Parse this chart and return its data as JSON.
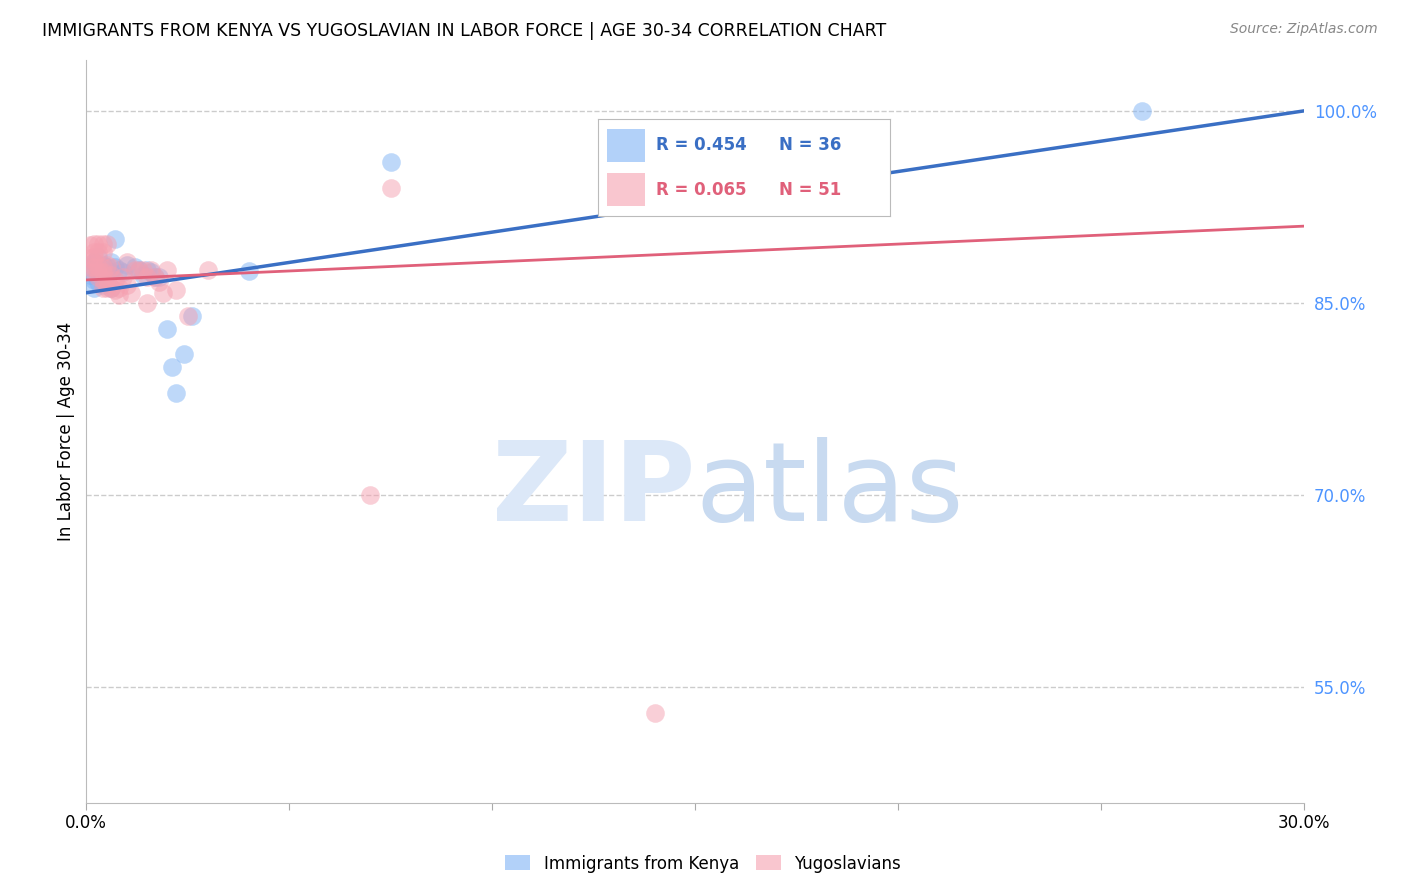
{
  "title": "IMMIGRANTS FROM KENYA VS YUGOSLAVIAN IN LABOR FORCE | AGE 30-34 CORRELATION CHART",
  "source": "Source: ZipAtlas.com",
  "ylabel": "In Labor Force | Age 30-34",
  "kenya_R": "0.454",
  "kenya_N": "36",
  "yugo_R": "0.065",
  "yugo_N": "51",
  "kenya_color": "#7fb3f5",
  "yugo_color": "#f5a0b0",
  "kenya_line_color": "#3a6fc4",
  "yugo_line_color": "#e0607a",
  "background_color": "#ffffff",
  "grid_color": "#cccccc",
  "right_axis_color": "#4d94ff",
  "xlim": [
    0.0,
    0.3
  ],
  "ylim": [
    0.46,
    1.04
  ],
  "kenya_scatter": [
    [
      0.001,
      0.878
    ],
    [
      0.001,
      0.872
    ],
    [
      0.002,
      0.882
    ],
    [
      0.002,
      0.868
    ],
    [
      0.002,
      0.862
    ],
    [
      0.003,
      0.886
    ],
    [
      0.003,
      0.874
    ],
    [
      0.003,
      0.866
    ],
    [
      0.004,
      0.88
    ],
    [
      0.004,
      0.874
    ],
    [
      0.004,
      0.864
    ],
    [
      0.005,
      0.878
    ],
    [
      0.005,
      0.868
    ],
    [
      0.006,
      0.882
    ],
    [
      0.006,
      0.874
    ],
    [
      0.006,
      0.862
    ],
    [
      0.007,
      0.9
    ],
    [
      0.007,
      0.878
    ],
    [
      0.008,
      0.876
    ],
    [
      0.009,
      0.874
    ],
    [
      0.01,
      0.88
    ],
    [
      0.012,
      0.878
    ],
    [
      0.013,
      0.876
    ],
    [
      0.014,
      0.872
    ],
    [
      0.015,
      0.876
    ],
    [
      0.016,
      0.874
    ],
    [
      0.017,
      0.87
    ],
    [
      0.018,
      0.87
    ],
    [
      0.02,
      0.83
    ],
    [
      0.021,
      0.8
    ],
    [
      0.022,
      0.78
    ],
    [
      0.024,
      0.81
    ],
    [
      0.026,
      0.84
    ],
    [
      0.04,
      0.875
    ],
    [
      0.075,
      0.96
    ],
    [
      0.26,
      1.0
    ]
  ],
  "yugo_scatter": [
    [
      0.001,
      0.895
    ],
    [
      0.001,
      0.885
    ],
    [
      0.001,
      0.878
    ],
    [
      0.002,
      0.896
    ],
    [
      0.002,
      0.89
    ],
    [
      0.002,
      0.886
    ],
    [
      0.002,
      0.882
    ],
    [
      0.002,
      0.878
    ],
    [
      0.002,
      0.874
    ],
    [
      0.003,
      0.896
    ],
    [
      0.003,
      0.89
    ],
    [
      0.003,
      0.878
    ],
    [
      0.003,
      0.874
    ],
    [
      0.003,
      0.87
    ],
    [
      0.004,
      0.896
    ],
    [
      0.004,
      0.89
    ],
    [
      0.004,
      0.878
    ],
    [
      0.004,
      0.874
    ],
    [
      0.004,
      0.868
    ],
    [
      0.004,
      0.862
    ],
    [
      0.005,
      0.896
    ],
    [
      0.005,
      0.88
    ],
    [
      0.005,
      0.868
    ],
    [
      0.005,
      0.862
    ],
    [
      0.006,
      0.878
    ],
    [
      0.006,
      0.872
    ],
    [
      0.006,
      0.862
    ],
    [
      0.007,
      0.868
    ],
    [
      0.007,
      0.86
    ],
    [
      0.008,
      0.862
    ],
    [
      0.008,
      0.856
    ],
    [
      0.009,
      0.87
    ],
    [
      0.01,
      0.882
    ],
    [
      0.01,
      0.864
    ],
    [
      0.011,
      0.858
    ],
    [
      0.012,
      0.876
    ],
    [
      0.013,
      0.876
    ],
    [
      0.014,
      0.876
    ],
    [
      0.015,
      0.87
    ],
    [
      0.015,
      0.85
    ],
    [
      0.016,
      0.876
    ],
    [
      0.017,
      0.87
    ],
    [
      0.018,
      0.866
    ],
    [
      0.019,
      0.858
    ],
    [
      0.02,
      0.876
    ],
    [
      0.022,
      0.86
    ],
    [
      0.025,
      0.84
    ],
    [
      0.03,
      0.876
    ],
    [
      0.07,
      0.7
    ],
    [
      0.075,
      0.94
    ],
    [
      0.14,
      0.53
    ]
  ],
  "kenya_line": [
    0.0,
    0.858,
    0.3,
    1.0
  ],
  "yugo_line": [
    0.0,
    0.868,
    0.3,
    0.91
  ]
}
